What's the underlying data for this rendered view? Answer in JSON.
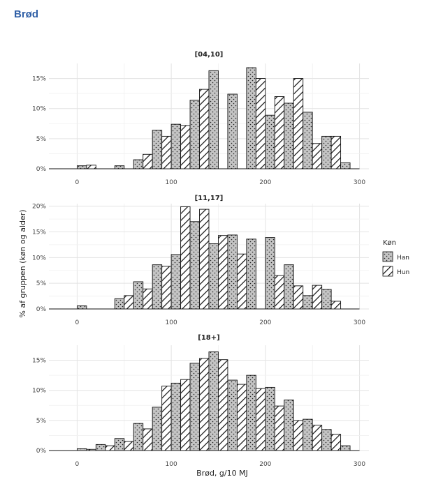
{
  "page": {
    "title": "Brød"
  },
  "chart_data": {
    "type": "bar",
    "xlabel": "Brød, g/10 MJ",
    "ylabel": "% af gruppen (køn og alder)",
    "legend": {
      "title": "Køn",
      "placement": "right",
      "entries": [
        "Han",
        "Hun"
      ]
    },
    "xlim": [
      -30,
      310
    ],
    "x_ticks": [
      0,
      100,
      200,
      300
    ],
    "bin_width": 20,
    "bin_starts": [
      0,
      20,
      40,
      60,
      80,
      100,
      120,
      140,
      160,
      180,
      200,
      220,
      240,
      260,
      280
    ],
    "grid": true,
    "panels": [
      {
        "title": "[04,10]",
        "ylim": [
          0,
          17.5
        ],
        "y_ticks": [
          0,
          5,
          10,
          15
        ],
        "series": [
          {
            "name": "Han",
            "values": [
              0.5,
              0,
              0.5,
              1.5,
              6.4,
              7.4,
              11.4,
              16.3,
              12.4,
              16.8,
              8.9,
              10.9,
              9.4,
              5.4,
              1.0
            ]
          },
          {
            "name": "Hun",
            "values": [
              0.6,
              0,
              0,
              2.4,
              5.4,
              7.2,
              13.2,
              0,
              0,
              15.0,
              12.0,
              15.0,
              4.2,
              5.4,
              0
            ]
          }
        ]
      },
      {
        "title": "[11,17]",
        "ylim": [
          0,
          20.5
        ],
        "y_ticks": [
          0,
          5,
          10,
          15,
          20
        ],
        "series": [
          {
            "name": "Han",
            "values": [
              0.6,
              0,
              2.0,
              5.3,
              8.6,
              10.6,
              17.0,
              12.7,
              14.4,
              13.6,
              13.9,
              8.6,
              2.6,
              3.8,
              0
            ]
          },
          {
            "name": "Hun",
            "values": [
              0,
              0,
              2.6,
              3.9,
              8.3,
              19.9,
              19.4,
              14.3,
              10.7,
              0,
              6.5,
              4.5,
              4.6,
              1.5,
              0
            ]
          }
        ]
      },
      {
        "title": "[18+]",
        "ylim": [
          0,
          17.5
        ],
        "y_ticks": [
          0,
          5,
          10,
          15
        ],
        "series": [
          {
            "name": "Han",
            "values": [
              0.3,
              1.0,
              2.0,
              4.5,
              7.2,
              11.2,
              14.5,
              16.4,
              11.7,
              12.5,
              10.5,
              8.4,
              5.2,
              3.5,
              0.8
            ]
          },
          {
            "name": "Hun",
            "values": [
              0.2,
              0.8,
              1.5,
              3.6,
              10.7,
              11.8,
              15.3,
              15.1,
              11.0,
              10.3,
              7.4,
              5.0,
              4.2,
              2.7,
              0
            ]
          }
        ]
      }
    ]
  }
}
